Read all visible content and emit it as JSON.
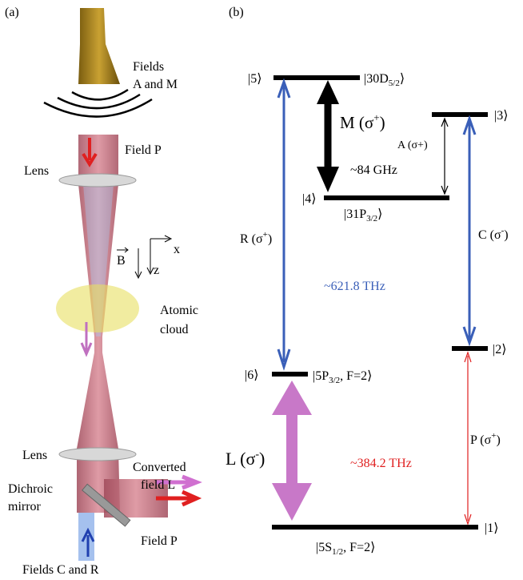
{
  "panel_a": {
    "label": "(a)",
    "fields_am": [
      "Fields",
      "A and M"
    ],
    "field_p_top": "Field P",
    "lens_top": "Lens",
    "b_field": "B",
    "axis_x": "x",
    "axis_z": "z",
    "atomic_cloud": [
      "Atomic",
      "cloud"
    ],
    "lens_bottom": "Lens",
    "converted": [
      "Converted",
      "field L"
    ],
    "dichroic": [
      "Dichroic",
      "mirror"
    ],
    "field_p_bottom": "Field P",
    "fields_cr": "Fields C and R"
  },
  "panel_b": {
    "label": "(b)",
    "levels": [
      {
        "ket": "|5⟩",
        "state": {
          "main": "|30D",
          "sub": "5/2",
          "tail": "⟩"
        }
      },
      {
        "ket": "|3⟩"
      },
      {
        "ket": "|4⟩",
        "state": {
          "main": "|31P",
          "sub": "3/2",
          "tail": "⟩"
        }
      },
      {
        "ket": "|2⟩"
      },
      {
        "ket": "|6⟩",
        "state": {
          "main": "|5P",
          "sub": "3/2",
          "tail": ", F=2⟩"
        }
      },
      {
        "ket": "|1⟩",
        "state": {
          "main": "|5S",
          "sub": "1/2",
          "tail": ", F=2⟩"
        }
      }
    ],
    "transitions": [
      {
        "main": "M (σ",
        "sup": "+",
        "tail": ")"
      },
      {
        "main": "A (σ+)"
      },
      {
        "main": "R (σ",
        "sup": "+",
        "tail": ")"
      },
      {
        "main": "C (σ",
        "sup": "-",
        "tail": ")"
      },
      {
        "main": "L (σ",
        "sup": "-",
        "tail": ")"
      },
      {
        "main": "P (σ",
        "sup": "+",
        "tail": ")"
      }
    ],
    "frequencies": [
      "~84 GHz",
      "~621.8 THz",
      "~384.2 THz"
    ]
  }
}
